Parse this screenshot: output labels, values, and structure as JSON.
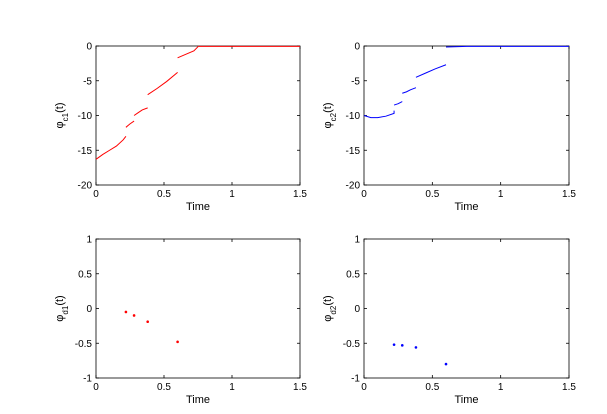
{
  "chart_data": [
    {
      "id": "c1",
      "type": "line",
      "xlabel": "Time",
      "ylabel": "φ_c1(t)",
      "ylabel_main": "φ",
      "ylabel_sub": "c1",
      "ylabel_tail": "(t)",
      "xlim": [
        0,
        1.5
      ],
      "ylim": [
        -20,
        0
      ],
      "xticks": [
        0,
        0.5,
        1,
        1.5
      ],
      "xtick_labels": [
        "0",
        "0.5",
        "1",
        "1.5"
      ],
      "yticks": [
        0,
        -5,
        -10,
        -15,
        -20
      ],
      "ytick_labels": [
        "0",
        "-5",
        "-10",
        "-15",
        "-20"
      ],
      "grid": false,
      "color": "#ff0000",
      "segments": [
        [
          [
            0,
            -16.3
          ],
          [
            0.05,
            -15.6
          ],
          [
            0.1,
            -15.0
          ],
          [
            0.15,
            -14.4
          ],
          [
            0.2,
            -13.5
          ],
          [
            0.22,
            -13.0
          ]
        ],
        [
          [
            0.22,
            -11.7
          ],
          [
            0.25,
            -11.2
          ],
          [
            0.28,
            -10.8
          ]
        ],
        [
          [
            0.28,
            -10.0
          ],
          [
            0.31,
            -9.6
          ],
          [
            0.34,
            -9.2
          ],
          [
            0.38,
            -8.9
          ]
        ],
        [
          [
            0.38,
            -7.0
          ],
          [
            0.45,
            -6.1
          ],
          [
            0.52,
            -5.1
          ],
          [
            0.6,
            -3.8
          ]
        ],
        [
          [
            0.6,
            -1.7
          ],
          [
            0.66,
            -1.2
          ],
          [
            0.72,
            -0.7
          ],
          [
            0.75,
            -0.1
          ]
        ],
        [
          [
            0.75,
            -0.05
          ],
          [
            1.5,
            -0.05
          ]
        ]
      ]
    },
    {
      "id": "c2",
      "type": "line",
      "xlabel": "Time",
      "ylabel": "φ_c2(t)",
      "ylabel_main": "φ",
      "ylabel_sub": "c2",
      "ylabel_tail": "(t)",
      "xlim": [
        0,
        1.5
      ],
      "ylim": [
        -20,
        0
      ],
      "xticks": [
        0,
        0.5,
        1,
        1.5
      ],
      "xtick_labels": [
        "0",
        "0.5",
        "1",
        "1.5"
      ],
      "yticks": [
        0,
        -5,
        -10,
        -15,
        -20
      ],
      "ytick_labels": [
        "0",
        "-5",
        "-10",
        "-15",
        "-20"
      ],
      "grid": false,
      "color": "#0000ff",
      "segments": [
        [
          [
            0,
            -10.0
          ],
          [
            0.05,
            -10.3
          ],
          [
            0.1,
            -10.3
          ],
          [
            0.16,
            -10.1
          ],
          [
            0.22,
            -9.7
          ],
          [
            0.22,
            -9.3
          ]
        ],
        [
          [
            0.22,
            -8.5
          ],
          [
            0.25,
            -8.3
          ],
          [
            0.28,
            -8.0
          ]
        ],
        [
          [
            0.28,
            -6.8
          ],
          [
            0.31,
            -6.6
          ],
          [
            0.34,
            -6.3
          ],
          [
            0.38,
            -6.0
          ]
        ],
        [
          [
            0.38,
            -4.5
          ],
          [
            0.45,
            -3.9
          ],
          [
            0.52,
            -3.3
          ],
          [
            0.6,
            -2.7
          ]
        ],
        [
          [
            0.6,
            -0.15
          ],
          [
            0.75,
            -0.05
          ],
          [
            1.5,
            -0.05
          ]
        ]
      ]
    },
    {
      "id": "d1",
      "type": "scatter",
      "xlabel": "Time",
      "ylabel": "φ_d1(t)",
      "ylabel_main": "φ",
      "ylabel_sub": "d1",
      "ylabel_tail": "(t)",
      "xlim": [
        0,
        1.5
      ],
      "ylim": [
        -1,
        1
      ],
      "xticks": [
        0,
        0.5,
        1,
        1.5
      ],
      "xtick_labels": [
        "0",
        "0.5",
        "1",
        "1.5"
      ],
      "yticks": [
        1,
        0.5,
        0,
        -0.5,
        -1
      ],
      "ytick_labels": [
        "1",
        "0.5",
        "0",
        "-0.5",
        "-1"
      ],
      "grid": false,
      "color": "#ff0000",
      "points": [
        [
          0.22,
          -0.05
        ],
        [
          0.28,
          -0.1
        ],
        [
          0.38,
          -0.19
        ],
        [
          0.6,
          -0.48
        ]
      ]
    },
    {
      "id": "d2",
      "type": "scatter",
      "xlabel": "Time",
      "ylabel": "φ_d2(t)",
      "ylabel_main": "φ",
      "ylabel_sub": "d2",
      "ylabel_tail": "(t)",
      "xlim": [
        0,
        1.5
      ],
      "ylim": [
        -1,
        1
      ],
      "xticks": [
        0,
        0.5,
        1,
        1.5
      ],
      "xtick_labels": [
        "0",
        "0.5",
        "1",
        "1.5"
      ],
      "yticks": [
        1,
        0.5,
        0,
        -0.5,
        -1
      ],
      "ytick_labels": [
        "1",
        "0.5",
        "0",
        "-0.5",
        "-1"
      ],
      "grid": false,
      "color": "#0000ff",
      "points": [
        [
          0.22,
          -0.52
        ],
        [
          0.28,
          -0.53
        ],
        [
          0.38,
          -0.56
        ],
        [
          0.6,
          -0.8
        ]
      ]
    }
  ]
}
